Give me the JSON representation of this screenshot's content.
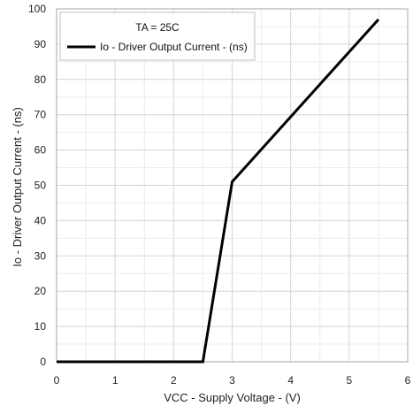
{
  "chart_data": {
    "type": "line",
    "xlabel": "VCC - Supply Voltage - (V)",
    "ylabel": "Io - Driver Output Current - (ns)",
    "xlim": [
      0,
      6
    ],
    "ylim": [
      0,
      100
    ],
    "xticks": [
      0,
      1,
      2,
      3,
      4,
      5,
      6
    ],
    "yticks": [
      0,
      10,
      20,
      30,
      40,
      50,
      60,
      70,
      80,
      90,
      100
    ],
    "x_minor_step": 0.5,
    "y_minor_step": 5,
    "grid": true,
    "legend": {
      "placement": "top-left",
      "title": "TA = 25C"
    },
    "series": [
      {
        "name": "Io - Driver Output Current - (ns)",
        "color": "#000000",
        "x": [
          0,
          2.5,
          3.0,
          5.5
        ],
        "y": [
          0,
          0,
          51,
          97
        ]
      }
    ]
  }
}
